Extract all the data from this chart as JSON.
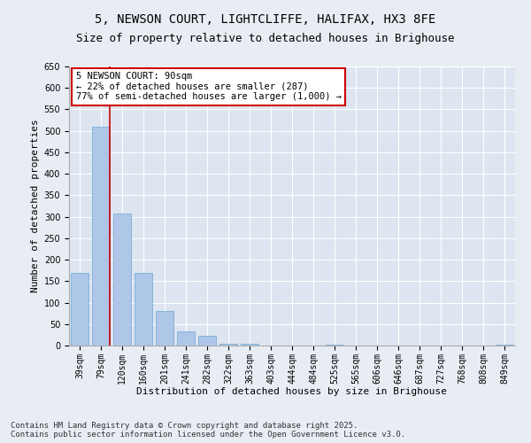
{
  "title_line1": "5, NEWSON COURT, LIGHTCLIFFE, HALIFAX, HX3 8FE",
  "title_line2": "Size of property relative to detached houses in Brighouse",
  "xlabel": "Distribution of detached houses by size in Brighouse",
  "ylabel": "Number of detached properties",
  "categories": [
    "39sqm",
    "79sqm",
    "120sqm",
    "160sqm",
    "201sqm",
    "241sqm",
    "282sqm",
    "322sqm",
    "363sqm",
    "403sqm",
    "444sqm",
    "484sqm",
    "525sqm",
    "565sqm",
    "606sqm",
    "646sqm",
    "687sqm",
    "727sqm",
    "768sqm",
    "808sqm",
    "849sqm"
  ],
  "values": [
    170,
    510,
    308,
    170,
    80,
    33,
    22,
    5,
    5,
    0,
    0,
    0,
    3,
    0,
    0,
    0,
    0,
    0,
    0,
    0,
    3
  ],
  "bar_color": "#aec6e8",
  "bar_edge_color": "#7aafd4",
  "vline_color": "#cc0000",
  "vline_x_index": 1.425,
  "annotation_box_text": "5 NEWSON COURT: 90sqm\n← 22% of detached houses are smaller (287)\n77% of semi-detached houses are larger (1,000) →",
  "annotation_box_edgecolor": "#cc0000",
  "ylim": [
    0,
    650
  ],
  "yticks": [
    0,
    50,
    100,
    150,
    200,
    250,
    300,
    350,
    400,
    450,
    500,
    550,
    600,
    650
  ],
  "bg_color": "#e8edf4",
  "plot_bg_color": "#dce5f0",
  "footer_text": "Contains HM Land Registry data © Crown copyright and database right 2025.\nContains public sector information licensed under the Open Government Licence v3.0.",
  "title_fontsize": 10,
  "subtitle_fontsize": 9,
  "axis_label_fontsize": 8,
  "tick_fontsize": 7,
  "annotation_fontsize": 7.5,
  "footer_fontsize": 6.5,
  "ylabel_full": "Number of detached properties"
}
